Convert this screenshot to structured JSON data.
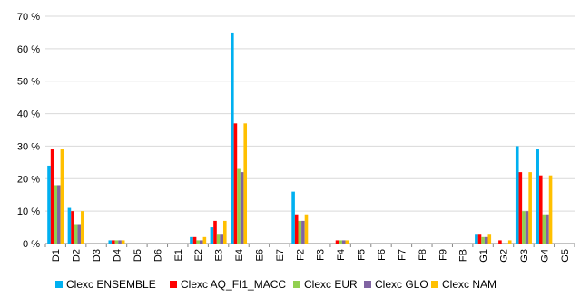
{
  "chart_data": {
    "type": "bar",
    "title": "",
    "xlabel": "",
    "ylabel": "",
    "ylim": [
      0,
      70
    ],
    "y_tick_step": 10,
    "y_tick_suffix": " %",
    "grid": true,
    "legend_position": "bottom",
    "categories": [
      "D1",
      "D2",
      "D3",
      "D4",
      "D5",
      "D6",
      "E1",
      "E2",
      "E3",
      "E4",
      "E6",
      "E7",
      "F2",
      "F3",
      "F4",
      "F5",
      "F6",
      "F7",
      "F8",
      "F9",
      "FB",
      "G1",
      "G2",
      "G3",
      "G4",
      "G5"
    ],
    "series": [
      {
        "name": "Clexc ENSEMBLE",
        "color": "#00B0F0",
        "values": [
          24,
          11,
          0,
          1,
          0,
          0,
          0,
          2,
          5,
          65,
          0,
          0,
          16,
          0,
          0,
          0,
          0,
          0,
          0,
          0,
          0,
          3,
          0,
          30,
          29,
          0
        ]
      },
      {
        "name": "Clexc AQ_FI1_MACC",
        "color": "#FF0000",
        "values": [
          29,
          10,
          0,
          1,
          0,
          0,
          0,
          2,
          7,
          37,
          0,
          0,
          9,
          0,
          1,
          0,
          0,
          0,
          0,
          0,
          0,
          3,
          1,
          22,
          21,
          0
        ]
      },
      {
        "name": "Clexc EUR",
        "color": "#92D050",
        "values": [
          18,
          6,
          0,
          1,
          0,
          0,
          0,
          1,
          3,
          23,
          0,
          0,
          7,
          0,
          1,
          0,
          0,
          0,
          0,
          0,
          0,
          2,
          0,
          10,
          9,
          0
        ]
      },
      {
        "name": "Clexc GLO",
        "color": "#8064A2",
        "values": [
          18,
          6,
          0,
          1,
          0,
          0,
          0,
          1,
          3,
          22,
          0,
          0,
          7,
          0,
          1,
          0,
          0,
          0,
          0,
          0,
          0,
          2,
          0,
          10,
          9,
          0
        ]
      },
      {
        "name": "Clexc NAM",
        "color": "#FFC000",
        "values": [
          29,
          10,
          0,
          1,
          0,
          0,
          0,
          2,
          7,
          37,
          0,
          0,
          9,
          0,
          1,
          0,
          0,
          0,
          0,
          0,
          0,
          3,
          1,
          22,
          21,
          0
        ]
      }
    ]
  }
}
